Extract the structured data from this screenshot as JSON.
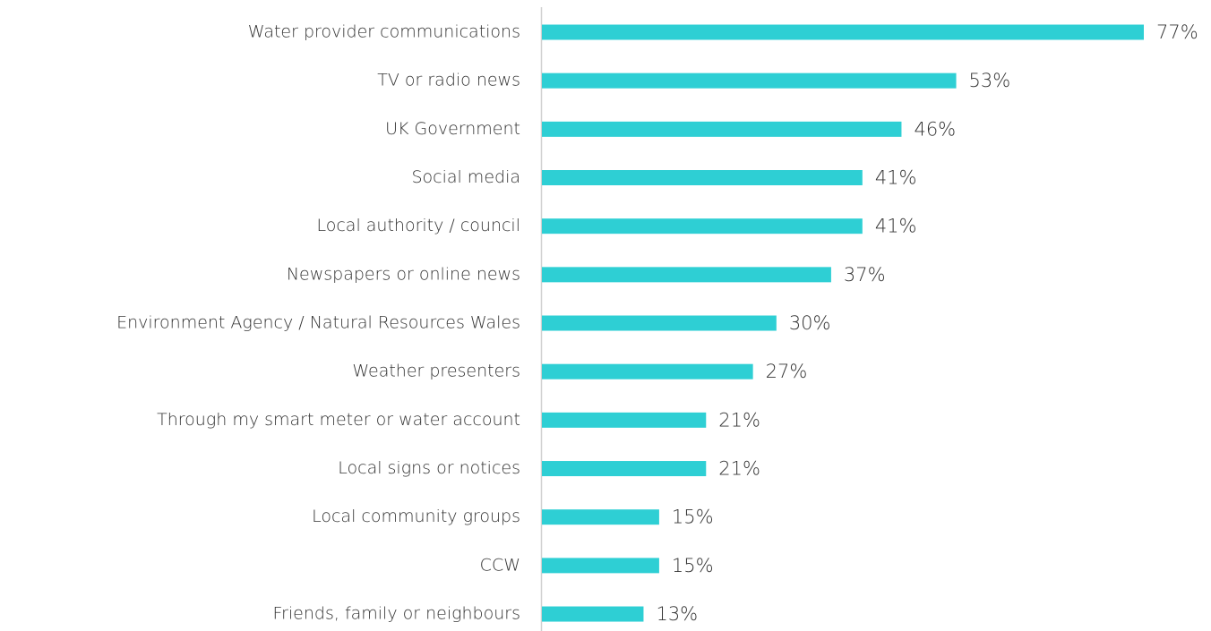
{
  "chart_data": {
    "type": "hbar",
    "categories": [
      "Water provider communications",
      "TV or radio news",
      "UK Government",
      "Social media",
      "Local authority / council",
      "Newspapers or online news",
      "Environment Agency / Natural Resources Wales",
      "Weather presenters",
      "Through my smart meter or water account",
      "Local signs or notices",
      "Local community groups",
      "CCW",
      "Friends, family or neighbours"
    ],
    "values": [
      77,
      53,
      46,
      41,
      41,
      37,
      30,
      27,
      21,
      21,
      15,
      15,
      13
    ],
    "value_labels": [
      "77%",
      "53%",
      "46%",
      "41%",
      "41%",
      "37%",
      "30%",
      "27%",
      "21%",
      "21%",
      "15%",
      "15%",
      "13%"
    ],
    "color": "#2ecfd4",
    "xlim": [
      0,
      77
    ]
  }
}
